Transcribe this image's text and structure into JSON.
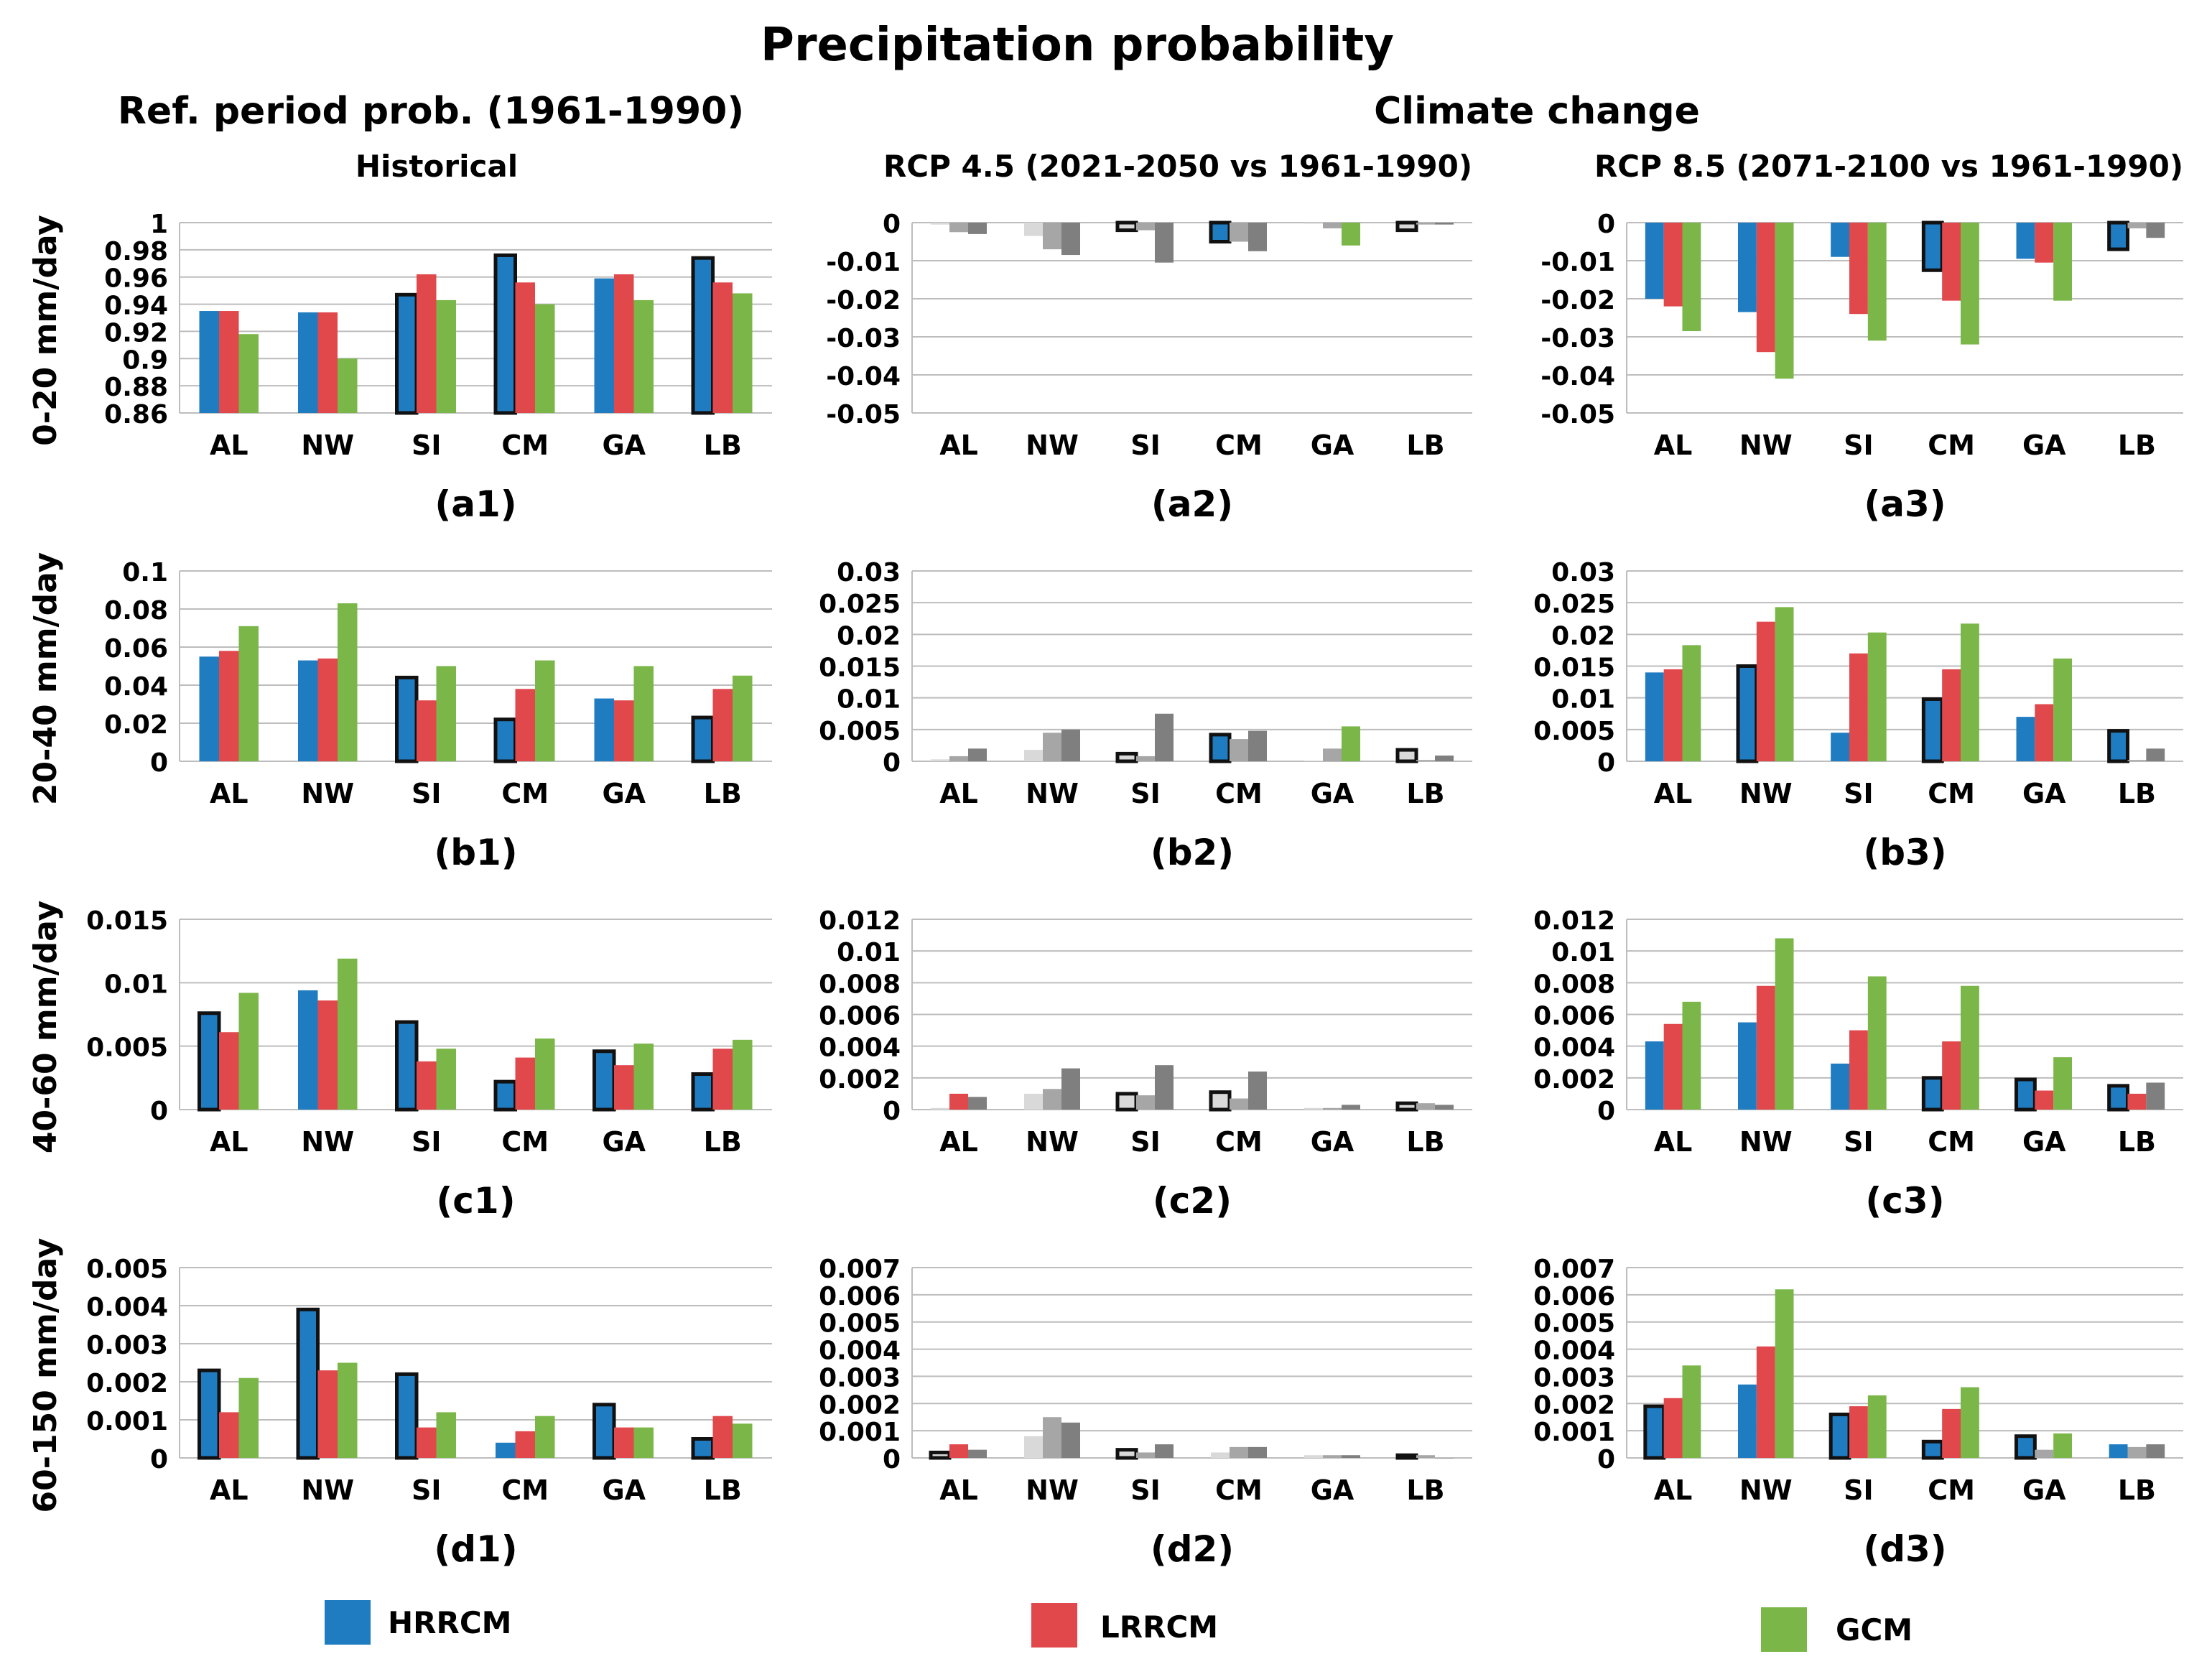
{
  "title": "Precipitation probability",
  "left_header": "Ref. period prob. (1961-1990)",
  "right_header": "Climate change",
  "column_titles": [
    "Historical",
    "RCP 4.5 (2021-2050 vs 1961-1990)",
    "RCP 8.5 (2071-2100 vs 1961-1990)"
  ],
  "row_labels": [
    "0-20 mm/day",
    "20-40 mm/day",
    "40-60 mm/day",
    "60-150 mm/day"
  ],
  "legend": [
    {
      "name": "HRRCM",
      "color": "#1f7cc1"
    },
    {
      "name": "LRRCM",
      "color": "#e0484c"
    },
    {
      "name": "GCM",
      "color": "#7ab648"
    }
  ],
  "colors": {
    "hrrcm": "#1f7cc1",
    "lrrcm": "#e0484c",
    "gcm": "#7ab648",
    "grid": "#bdbdbd",
    "insignificant_light": "#d9d9d9",
    "insignificant_mid": "#a6a6a6",
    "insignificant_dark": "#7f7f7f"
  },
  "chart_data": [
    {
      "id": "a1",
      "type": "bar",
      "label": "(a1)",
      "categories": [
        "AL",
        "NW",
        "SI",
        "CM",
        "GA",
        "LB"
      ],
      "ylim": [
        0.86,
        1
      ],
      "ticks": [
        "1",
        "0.98",
        "0.96",
        "0.94",
        "0.92",
        "0.9",
        "0.88",
        "0.86"
      ],
      "tickvals": [
        1,
        0.98,
        0.96,
        0.94,
        0.92,
        0.9,
        0.88,
        0.86
      ],
      "series": [
        {
          "name": "HRRCM",
          "values": [
            0.935,
            0.934,
            0.947,
            0.976,
            0.959,
            0.974
          ],
          "outlined": [
            false,
            false,
            true,
            true,
            false,
            true
          ]
        },
        {
          "name": "LRRCM",
          "values": [
            0.935,
            0.934,
            0.962,
            0.956,
            0.962,
            0.956
          ]
        },
        {
          "name": "GCM",
          "values": [
            0.918,
            0.9,
            0.943,
            0.94,
            0.943,
            0.948
          ]
        }
      ]
    },
    {
      "id": "a2",
      "type": "bar",
      "label": "(a2)",
      "categories": [
        "AL",
        "NW",
        "SI",
        "CM",
        "GA",
        "LB"
      ],
      "ylim": [
        -0.05,
        0
      ],
      "ticks": [
        "0",
        "-0.01",
        "-0.02",
        "-0.03",
        "-0.04",
        "-0.05"
      ],
      "tickvals": [
        0,
        -0.01,
        -0.02,
        -0.03,
        -0.04,
        -0.05
      ],
      "series": [
        {
          "name": "HRRCM",
          "values": [
            -0.0005,
            -0.0035,
            -0.002,
            -0.005,
            -0.0003,
            -0.002
          ],
          "outlined": [
            false,
            false,
            true,
            true,
            false,
            true
          ],
          "colored": [
            false,
            false,
            false,
            true,
            false,
            false
          ]
        },
        {
          "name": "LRRCM",
          "values": [
            -0.0025,
            -0.007,
            -0.002,
            -0.005,
            -0.0015,
            -0.0005
          ],
          "colored": [
            false,
            false,
            false,
            false,
            false,
            false
          ]
        },
        {
          "name": "GCM",
          "values": [
            -0.003,
            -0.0085,
            -0.0105,
            -0.0075,
            -0.006,
            -0.0005
          ],
          "colored": [
            false,
            false,
            false,
            false,
            true,
            false
          ]
        }
      ]
    },
    {
      "id": "a3",
      "type": "bar",
      "label": "(a3)",
      "categories": [
        "AL",
        "NW",
        "SI",
        "CM",
        "GA",
        "LB"
      ],
      "ylim": [
        -0.05,
        0
      ],
      "ticks": [
        "0",
        "-0.01",
        "-0.02",
        "-0.03",
        "-0.04",
        "-0.05"
      ],
      "tickvals": [
        0,
        -0.01,
        -0.02,
        -0.03,
        -0.04,
        -0.05
      ],
      "series": [
        {
          "name": "HRRCM",
          "values": [
            -0.02,
            -0.0235,
            -0.009,
            -0.0125,
            -0.0095,
            -0.007
          ],
          "outlined": [
            false,
            false,
            false,
            true,
            false,
            true
          ]
        },
        {
          "name": "LRRCM",
          "values": [
            -0.022,
            -0.034,
            -0.024,
            -0.0205,
            -0.0105,
            -0.0015
          ],
          "colored": [
            true,
            true,
            true,
            true,
            true,
            false
          ]
        },
        {
          "name": "GCM",
          "values": [
            -0.0285,
            -0.041,
            -0.031,
            -0.032,
            -0.0205,
            -0.004
          ],
          "colored": [
            true,
            true,
            true,
            true,
            true,
            false
          ]
        }
      ]
    },
    {
      "id": "b1",
      "type": "bar",
      "label": "(b1)",
      "categories": [
        "AL",
        "NW",
        "SI",
        "CM",
        "GA",
        "LB"
      ],
      "ylim": [
        0,
        0.1
      ],
      "ticks": [
        "0.1",
        "0.08",
        "0.06",
        "0.04",
        "0.02",
        "0"
      ],
      "tickvals": [
        0.1,
        0.08,
        0.06,
        0.04,
        0.02,
        0
      ],
      "series": [
        {
          "name": "HRRCM",
          "values": [
            0.055,
            0.053,
            0.044,
            0.022,
            0.033,
            0.023
          ],
          "outlined": [
            false,
            false,
            true,
            true,
            false,
            true
          ]
        },
        {
          "name": "LRRCM",
          "values": [
            0.058,
            0.054,
            0.032,
            0.038,
            0.032,
            0.038
          ]
        },
        {
          "name": "GCM",
          "values": [
            0.071,
            0.083,
            0.05,
            0.053,
            0.05,
            0.045
          ]
        }
      ]
    },
    {
      "id": "b2",
      "type": "bar",
      "label": "(b2)",
      "categories": [
        "AL",
        "NW",
        "SI",
        "CM",
        "GA",
        "LB"
      ],
      "ylim": [
        0,
        0.03
      ],
      "ticks": [
        "0.03",
        "0.025",
        "0.02",
        "0.015",
        "0.01",
        "0.005",
        "0"
      ],
      "tickvals": [
        0.03,
        0.025,
        0.02,
        0.015,
        0.01,
        0.005,
        0
      ],
      "series": [
        {
          "name": "HRRCM",
          "values": [
            0.0003,
            0.0018,
            0.0012,
            0.0042,
            0.0001,
            0.0018
          ],
          "outlined": [
            false,
            false,
            true,
            true,
            false,
            true
          ],
          "colored": [
            false,
            false,
            false,
            true,
            false,
            false
          ]
        },
        {
          "name": "LRRCM",
          "values": [
            0.0008,
            0.0045,
            0.0008,
            0.0035,
            0.002,
            0.0002
          ],
          "colored": [
            false,
            false,
            false,
            false,
            false,
            false
          ]
        },
        {
          "name": "GCM",
          "values": [
            0.002,
            0.005,
            0.0075,
            0.0048,
            0.0055,
            0.0009
          ],
          "colored": [
            false,
            false,
            false,
            false,
            true,
            false
          ]
        }
      ]
    },
    {
      "id": "b3",
      "type": "bar",
      "label": "(b3)",
      "categories": [
        "AL",
        "NW",
        "SI",
        "CM",
        "GA",
        "LB"
      ],
      "ylim": [
        0,
        0.03
      ],
      "ticks": [
        "0.03",
        "0.025",
        "0.02",
        "0.015",
        "0.01",
        "0.005",
        "0"
      ],
      "tickvals": [
        0.03,
        0.025,
        0.02,
        0.015,
        0.01,
        0.005,
        0
      ],
      "series": [
        {
          "name": "HRRCM",
          "values": [
            0.014,
            0.015,
            0.0045,
            0.0098,
            0.007,
            0.0048
          ],
          "outlined": [
            false,
            true,
            false,
            true,
            false,
            true
          ]
        },
        {
          "name": "LRRCM",
          "values": [
            0.0145,
            0.022,
            0.017,
            0.0145,
            0.009,
            0.0002
          ],
          "colored": [
            true,
            true,
            true,
            true,
            true,
            false
          ]
        },
        {
          "name": "GCM",
          "values": [
            0.0183,
            0.0243,
            0.0203,
            0.0217,
            0.0162,
            0.002
          ],
          "colored": [
            true,
            true,
            true,
            true,
            true,
            false
          ]
        }
      ]
    },
    {
      "id": "c1",
      "type": "bar",
      "label": "(c1)",
      "categories": [
        "AL",
        "NW",
        "SI",
        "CM",
        "GA",
        "LB"
      ],
      "ylim": [
        0,
        0.015
      ],
      "ticks": [
        "0.015",
        "0.01",
        "0.005",
        "0"
      ],
      "tickvals": [
        0.015,
        0.01,
        0.005,
        0
      ],
      "series": [
        {
          "name": "HRRCM",
          "values": [
            0.0076,
            0.0094,
            0.0069,
            0.0022,
            0.0046,
            0.0028
          ],
          "outlined": [
            true,
            false,
            true,
            true,
            true,
            true
          ]
        },
        {
          "name": "LRRCM",
          "values": [
            0.0061,
            0.0086,
            0.0038,
            0.0041,
            0.0035,
            0.0048
          ]
        },
        {
          "name": "GCM",
          "values": [
            0.0092,
            0.0119,
            0.0048,
            0.0056,
            0.0052,
            0.0055
          ]
        }
      ]
    },
    {
      "id": "c2",
      "type": "bar",
      "label": "(c2)",
      "categories": [
        "AL",
        "NW",
        "SI",
        "CM",
        "GA",
        "LB"
      ],
      "ylim": [
        0,
        0.012
      ],
      "ticks": [
        "0.012",
        "0.01",
        "0.008",
        "0.006",
        "0.004",
        "0.002",
        "0"
      ],
      "tickvals": [
        0.012,
        0.01,
        0.008,
        0.006,
        0.004,
        0.002,
        0
      ],
      "series": [
        {
          "name": "HRRCM",
          "values": [
            0.0001,
            0.001,
            0.001,
            0.0011,
            0.0001,
            0.0004
          ],
          "outlined": [
            false,
            false,
            true,
            true,
            false,
            true
          ],
          "colored": [
            false,
            false,
            false,
            false,
            false,
            false
          ]
        },
        {
          "name": "LRRCM",
          "values": [
            0.001,
            0.0013,
            0.0009,
            0.0007,
            0.0001,
            0.0004
          ],
          "colored": [
            true,
            false,
            false,
            false,
            false,
            false
          ]
        },
        {
          "name": "GCM",
          "values": [
            0.0008,
            0.0026,
            0.0028,
            0.0024,
            0.0003,
            0.0003
          ],
          "colored": [
            false,
            false,
            false,
            false,
            false,
            false
          ]
        }
      ]
    },
    {
      "id": "c3",
      "type": "bar",
      "label": "(c3)",
      "categories": [
        "AL",
        "NW",
        "SI",
        "CM",
        "GA",
        "LB"
      ],
      "ylim": [
        0,
        0.012
      ],
      "ticks": [
        "0.012",
        "0.01",
        "0.008",
        "0.006",
        "0.004",
        "0.002",
        "0"
      ],
      "tickvals": [
        0.012,
        0.01,
        0.008,
        0.006,
        0.004,
        0.002,
        0
      ],
      "series": [
        {
          "name": "HRRCM",
          "values": [
            0.0043,
            0.0055,
            0.0029,
            0.002,
            0.0019,
            0.0015
          ],
          "outlined": [
            false,
            false,
            false,
            true,
            true,
            true
          ]
        },
        {
          "name": "LRRCM",
          "values": [
            0.0054,
            0.0078,
            0.005,
            0.0043,
            0.0012,
            0.001
          ],
          "colored": [
            true,
            true,
            true,
            true,
            true,
            true
          ]
        },
        {
          "name": "GCM",
          "values": [
            0.0068,
            0.0108,
            0.0084,
            0.0078,
            0.0033,
            0.0017
          ],
          "colored": [
            true,
            true,
            true,
            true,
            true,
            false
          ]
        }
      ]
    },
    {
      "id": "d1",
      "type": "bar",
      "label": "(d1)",
      "categories": [
        "AL",
        "NW",
        "SI",
        "CM",
        "GA",
        "LB"
      ],
      "ylim": [
        0,
        0.005
      ],
      "ticks": [
        "0.005",
        "0.004",
        "0.003",
        "0.002",
        "0.001",
        "0"
      ],
      "tickvals": [
        0.005,
        0.004,
        0.003,
        0.002,
        0.001,
        0
      ],
      "series": [
        {
          "name": "HRRCM",
          "values": [
            0.0023,
            0.0039,
            0.0022,
            0.0004,
            0.0014,
            0.0005
          ],
          "outlined": [
            true,
            true,
            true,
            false,
            true,
            true
          ]
        },
        {
          "name": "LRRCM",
          "values": [
            0.0012,
            0.0023,
            0.0008,
            0.0007,
            0.0008,
            0.0011
          ]
        },
        {
          "name": "GCM",
          "values": [
            0.0021,
            0.0025,
            0.0012,
            0.0011,
            0.0008,
            0.0009
          ]
        }
      ]
    },
    {
      "id": "d2",
      "type": "bar",
      "label": "(d2)",
      "categories": [
        "AL",
        "NW",
        "SI",
        "CM",
        "GA",
        "LB"
      ],
      "ylim": [
        0,
        0.007
      ],
      "ticks": [
        "0.007",
        "0.006",
        "0.005",
        "0.004",
        "0.003",
        "0.002",
        "0.001",
        "0"
      ],
      "tickvals": [
        0.007,
        0.006,
        0.005,
        0.004,
        0.003,
        0.002,
        0.001,
        0
      ],
      "series": [
        {
          "name": "HRRCM",
          "values": [
            0.0002,
            0.0008,
            0.0003,
            0.0002,
            0.0001,
            0.0001
          ],
          "outlined": [
            true,
            false,
            true,
            false,
            false,
            true
          ],
          "colored": [
            false,
            false,
            false,
            false,
            false,
            false
          ]
        },
        {
          "name": "LRRCM",
          "values": [
            0.0005,
            0.0015,
            0.0002,
            0.0004,
            0.0001,
            0.0001
          ],
          "colored": [
            true,
            false,
            false,
            false,
            false,
            false
          ]
        },
        {
          "name": "GCM",
          "values": [
            0.0003,
            0.0013,
            0.0005,
            0.0004,
            0.0001,
            0.0
          ],
          "colored": [
            false,
            false,
            false,
            false,
            false,
            false
          ]
        }
      ]
    },
    {
      "id": "d3",
      "type": "bar",
      "label": "(d3)",
      "categories": [
        "AL",
        "NW",
        "SI",
        "CM",
        "GA",
        "LB"
      ],
      "ylim": [
        0,
        0.007
      ],
      "ticks": [
        "0.007",
        "0.006",
        "0.005",
        "0.004",
        "0.003",
        "0.002",
        "0.001",
        "0"
      ],
      "tickvals": [
        0.007,
        0.006,
        0.005,
        0.004,
        0.003,
        0.002,
        0.001,
        0
      ],
      "series": [
        {
          "name": "HRRCM",
          "values": [
            0.0019,
            0.0027,
            0.0016,
            0.0006,
            0.0008,
            0.0005
          ],
          "outlined": [
            true,
            false,
            true,
            true,
            true,
            false
          ]
        },
        {
          "name": "LRRCM",
          "values": [
            0.0022,
            0.0041,
            0.0019,
            0.0018,
            0.0003,
            0.0004
          ],
          "colored": [
            true,
            true,
            true,
            true,
            false,
            false
          ]
        },
        {
          "name": "GCM",
          "values": [
            0.0034,
            0.0062,
            0.0023,
            0.0026,
            0.0009,
            0.0005
          ],
          "colored": [
            true,
            true,
            true,
            true,
            true,
            false
          ]
        }
      ]
    }
  ]
}
